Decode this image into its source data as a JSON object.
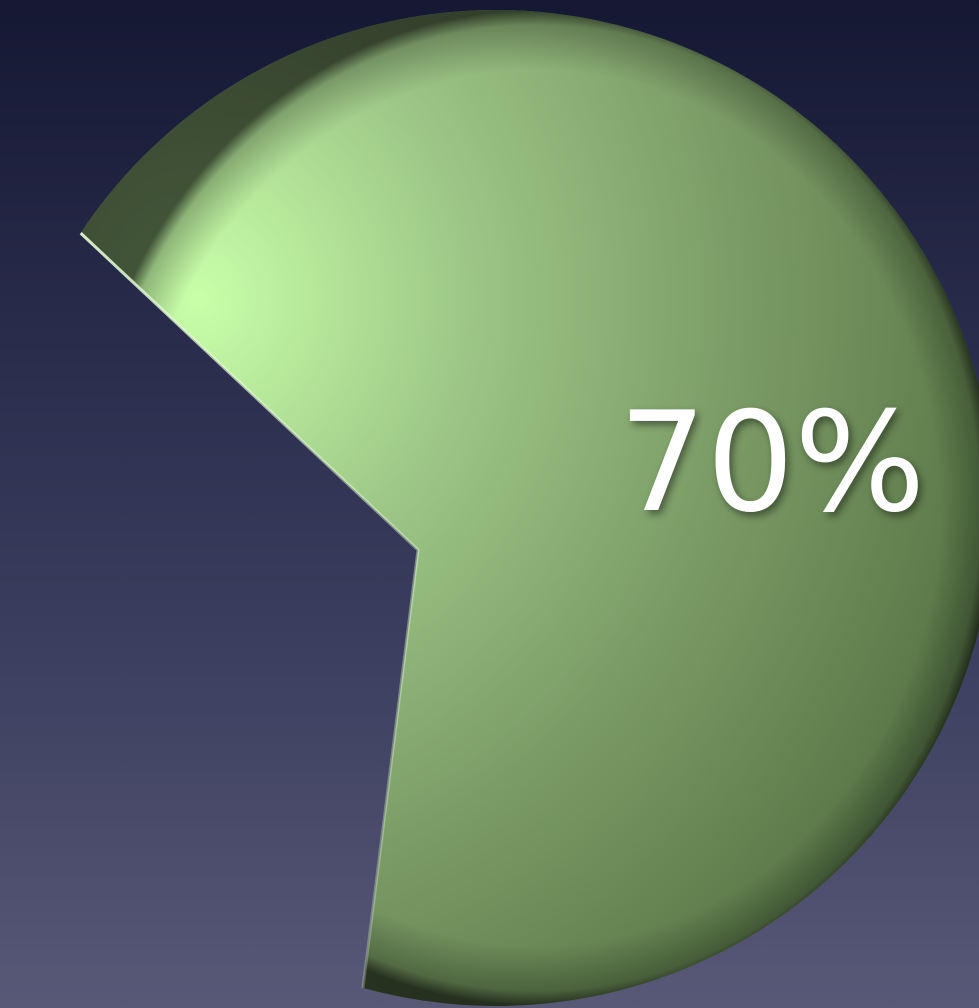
{
  "chart_data": {
    "type": "pie",
    "values": [
      70
    ],
    "total": 100,
    "data_labels": [
      "70%"
    ],
    "colors": {
      "slice_light": "#c8ffa8",
      "slice_mid": "#7f9e67",
      "slice_dark": "#4d6a3c",
      "label": "#ffffff"
    }
  }
}
